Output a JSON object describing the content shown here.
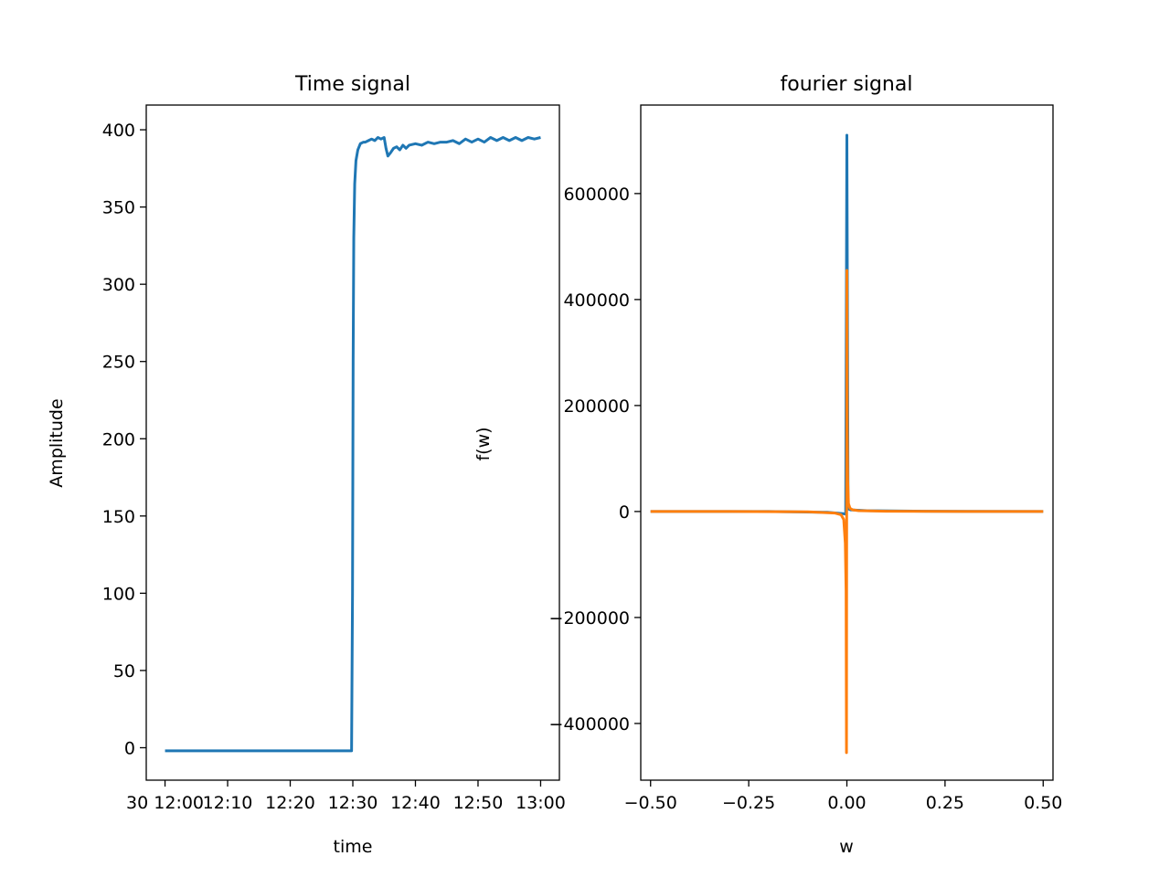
{
  "chart_data": [
    {
      "type": "line",
      "title": "Time signal",
      "xlabel": "time",
      "ylabel": "Amplitude",
      "x_tick_labels": [
        "30 12:00",
        "12:10",
        "12:20",
        "12:30",
        "12:40",
        "12:50",
        "13:00"
      ],
      "x_tick_values": [
        0,
        10,
        20,
        30,
        40,
        50,
        60
      ],
      "x_unit": "minutes after 12:00",
      "xlim": [
        -3,
        63
      ],
      "ylim": [
        -21,
        416
      ],
      "y_ticks": [
        0,
        50,
        100,
        150,
        200,
        250,
        300,
        350,
        400
      ],
      "grid": false,
      "series": [
        {
          "color": "#1f77b4",
          "x": [
            0,
            5,
            10,
            15,
            20,
            25,
            29.8,
            29.95,
            30.05,
            30.15,
            30.3,
            30.5,
            30.8,
            31.2,
            31.7,
            32,
            32.5,
            33,
            33.5,
            34,
            34.5,
            35,
            35.3,
            35.6,
            36,
            36.5,
            37,
            37.5,
            38,
            38.5,
            39,
            40,
            41,
            42,
            43,
            44,
            45,
            46,
            47,
            48,
            49,
            50,
            51,
            52,
            53,
            54,
            55,
            56,
            57,
            58,
            59,
            60
          ],
          "y": [
            -2,
            -2,
            -2,
            -2,
            -2,
            -2,
            -2,
            100,
            250,
            330,
            365,
            380,
            387,
            391,
            392,
            392,
            393,
            394,
            393,
            395,
            394,
            395,
            388,
            383,
            385,
            388,
            389,
            387,
            390,
            388,
            390,
            391,
            390,
            392,
            391,
            392,
            392,
            393,
            391,
            394,
            392,
            394,
            392,
            395,
            393,
            395,
            393,
            395,
            393,
            395,
            394,
            395
          ]
        }
      ]
    },
    {
      "type": "line",
      "title": "fourier signal",
      "xlabel": "w",
      "ylabel": "f(w)",
      "xlim": [
        -0.525,
        0.525
      ],
      "ylim": [
        -507000,
        767000
      ],
      "x_ticks": [
        -0.5,
        -0.25,
        0,
        0.25,
        0.5
      ],
      "x_tick_labels": [
        "−0.50",
        "−0.25",
        "0.00",
        "0.25",
        "0.50"
      ],
      "y_ticks": [
        -400000,
        -200000,
        0,
        200000,
        400000,
        600000
      ],
      "y_tick_labels": [
        "−400000",
        "−200000",
        "0",
        "200000",
        "400000",
        "600000"
      ],
      "grid": false,
      "series": [
        {
          "color": "#1f77b4",
          "x": [
            -0.5,
            -0.2,
            -0.05,
            -0.01,
            -0.003,
            0,
            0.003,
            0.01,
            0.05,
            0.2,
            0.3,
            0.5
          ],
          "y": [
            0,
            0,
            -1500,
            -4000,
            -5000,
            710000,
            5000,
            3000,
            1500,
            500,
            300,
            0
          ]
        },
        {
          "color": "#ff7f0e",
          "x": [
            -0.5,
            -0.3,
            -0.1,
            -0.03,
            -0.015,
            -0.008,
            -0.004,
            -0.002,
            -0.001,
            0,
            0.001,
            0.002,
            0.004,
            0.008,
            0.015,
            0.03,
            0.1,
            0.3,
            0.5
          ],
          "y": [
            0,
            0,
            -500,
            -3000,
            -6000,
            -15000,
            -60000,
            -150000,
            -455000,
            455000,
            150000,
            60000,
            15000,
            6000,
            3000,
            1500,
            500,
            0,
            0
          ]
        }
      ]
    }
  ]
}
